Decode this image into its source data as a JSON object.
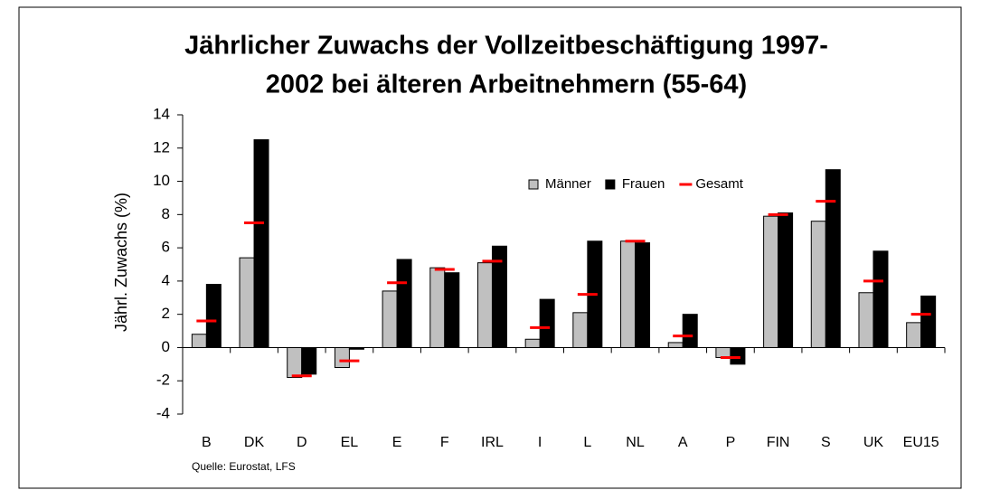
{
  "chart_data": {
    "type": "bar",
    "title": [
      "Jährlicher Zuwachs der Vollzeitbeschäftigung 1997-",
      "2002 bei älteren Arbeitnehmern (55-64)"
    ],
    "y_label": "Jährl. Zuwachs (%)",
    "source": "Quelle: Eurostat, LFS",
    "categories": [
      "B",
      "DK",
      "D",
      "EL",
      "E",
      "F",
      "IRL",
      "I",
      "L",
      "NL",
      "A",
      "P",
      "FIN",
      "S",
      "UK",
      "EU15"
    ],
    "series": [
      {
        "name": "Männer",
        "color": "#c0c0c0",
        "values": [
          0.8,
          5.4,
          -1.8,
          -1.2,
          3.4,
          4.8,
          5.1,
          0.5,
          2.1,
          6.4,
          0.3,
          -0.6,
          7.9,
          7.6,
          3.3,
          1.5
        ]
      },
      {
        "name": "Frauen",
        "color": "#000000",
        "values": [
          3.8,
          12.5,
          -1.6,
          -0.1,
          5.3,
          4.5,
          6.1,
          2.9,
          6.4,
          6.3,
          2.0,
          -1.0,
          8.1,
          10.7,
          5.8,
          3.1
        ]
      },
      {
        "name": "Gesamt",
        "color": "#ff0000",
        "marker": "dash",
        "values": [
          1.6,
          7.5,
          -1.7,
          -0.8,
          3.9,
          4.7,
          5.2,
          1.2,
          3.2,
          6.4,
          0.7,
          -0.6,
          8.0,
          8.8,
          4.0,
          2.0
        ]
      }
    ],
    "ylim": [
      -4,
      14
    ],
    "yticks": [
      -4,
      -2,
      0,
      2,
      4,
      6,
      8,
      10,
      12,
      14
    ],
    "grid": false,
    "legend": "top-right"
  }
}
